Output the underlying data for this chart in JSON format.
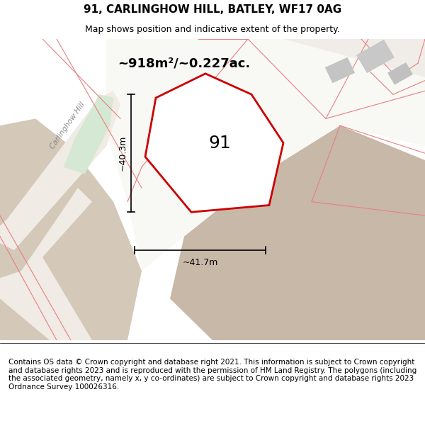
{
  "title": "91, CARLINGHOW HILL, BATLEY, WF17 0AG",
  "subtitle": "Map shows position and indicative extent of the property.",
  "area_label": "~918m²/~0.227ac.",
  "plot_number": "91",
  "width_label": "~41.7m",
  "height_label": "~40.3m",
  "road_label": "Carlinghow Hill",
  "footer": "Contains OS data © Crown copyright and database right 2021. This information is subject to Crown copyright and database rights 2023 and is reproduced with the permission of HM Land Registry. The polygons (including the associated geometry, namely x, y co-ordinates) are subject to Crown copyright and database rights 2023 Ordnance Survey 100026316.",
  "bg_color": "#f5f0eb",
  "map_bg": "#f5f0eb",
  "plot_fill": "#ffffff",
  "road_fill": "#ffffff",
  "green_fill": "#d4e8d8",
  "dark_fill": "#c8b8a8",
  "gray_fill": "#d8d8d8",
  "plot_edge_color": "#cc0000",
  "road_edge_color": "#e8a0a0",
  "title_fontsize": 11,
  "subtitle_fontsize": 9,
  "footer_fontsize": 7.5
}
